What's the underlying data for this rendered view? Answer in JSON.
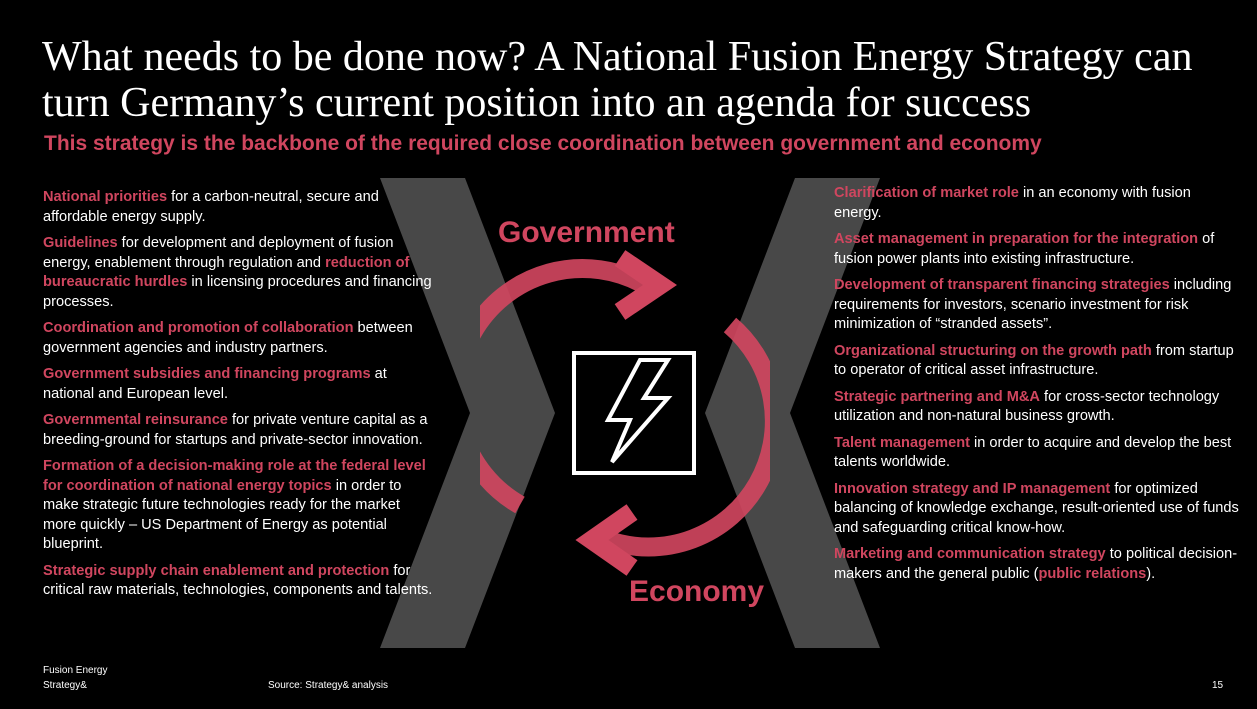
{
  "title": "What needs to be done now? A National Fusion Energy Strategy can turn Germany’s current position into an agenda for success",
  "subtitle": "This strategy is the backbone of the required close coordination between government and economy",
  "diagram": {
    "top_label": "Government",
    "bottom_label": "Economy",
    "icon": "lightning-bolt-icon"
  },
  "left_items": [
    {
      "highlight": "National priorities",
      "text": " for a carbon-neutral, secure and affordable energy supply."
    },
    {
      "highlight": "Guidelines",
      "text": " for development and deployment of fusion energy, enablement through regulation and ",
      "highlight2": "reduction of bureaucratic hurdles",
      "text2": " in licensing procedures and financing processes."
    },
    {
      "highlight": "Coordination and promotion of collaboration",
      "text": " between government agencies and industry partners."
    },
    {
      "highlight": "Government subsidies and financing programs",
      "text": " at national and European level."
    },
    {
      "highlight": "Governmental reinsurance",
      "text": " for private venture capital as a breeding-ground for startups and private-sector innovation."
    },
    {
      "highlight": "Formation of a decision-making role at the federal level for coordination of national energy topics",
      "text": " in order to make strategic future technologies ready for the market more quickly – US Department of Energy as potential blueprint."
    },
    {
      "highlight": "Strategic supply chain enablement and protection",
      "text": " for critical raw materials, technologies, components and talents."
    }
  ],
  "right_items": [
    {
      "highlight": "Clarification of market role",
      "text": " in an economy with fusion energy."
    },
    {
      "highlight": "Asset management in preparation for the integration",
      "text": " of fusion power plants into existing infrastructure."
    },
    {
      "highlight": "Development of transparent financing strategies",
      "text": " including requirements for investors, scenario investment for risk minimization of “stranded assets”."
    },
    {
      "highlight": "Organizational structuring on the growth path",
      "text": " from startup to operator of critical asset infrastructure."
    },
    {
      "highlight": "Strategic partnering and M&A",
      "text": " for cross-sector technology utilization and non-natural business growth."
    },
    {
      "highlight": "Talent management",
      "text": " in order to acquire and develop the best talents worldwide."
    },
    {
      "highlight": "Innovation strategy and IP management",
      "text": " for optimized balancing of knowledge exchange, result-oriented use of funds and safeguarding critical know-how."
    },
    {
      "text_before": "",
      "highlight": "Marketing and communication strategy",
      "text": " to political decision-makers and the general public (",
      "highlight2": "public relations",
      "text2": ")."
    }
  ],
  "footer": {
    "line1": "Fusion Energy",
    "line2": "Strategy&",
    "source": "Source: Strategy& analysis",
    "page": "15"
  },
  "colors": {
    "accent": "#d0465f",
    "background": "#000000",
    "chevron": "#444444"
  }
}
